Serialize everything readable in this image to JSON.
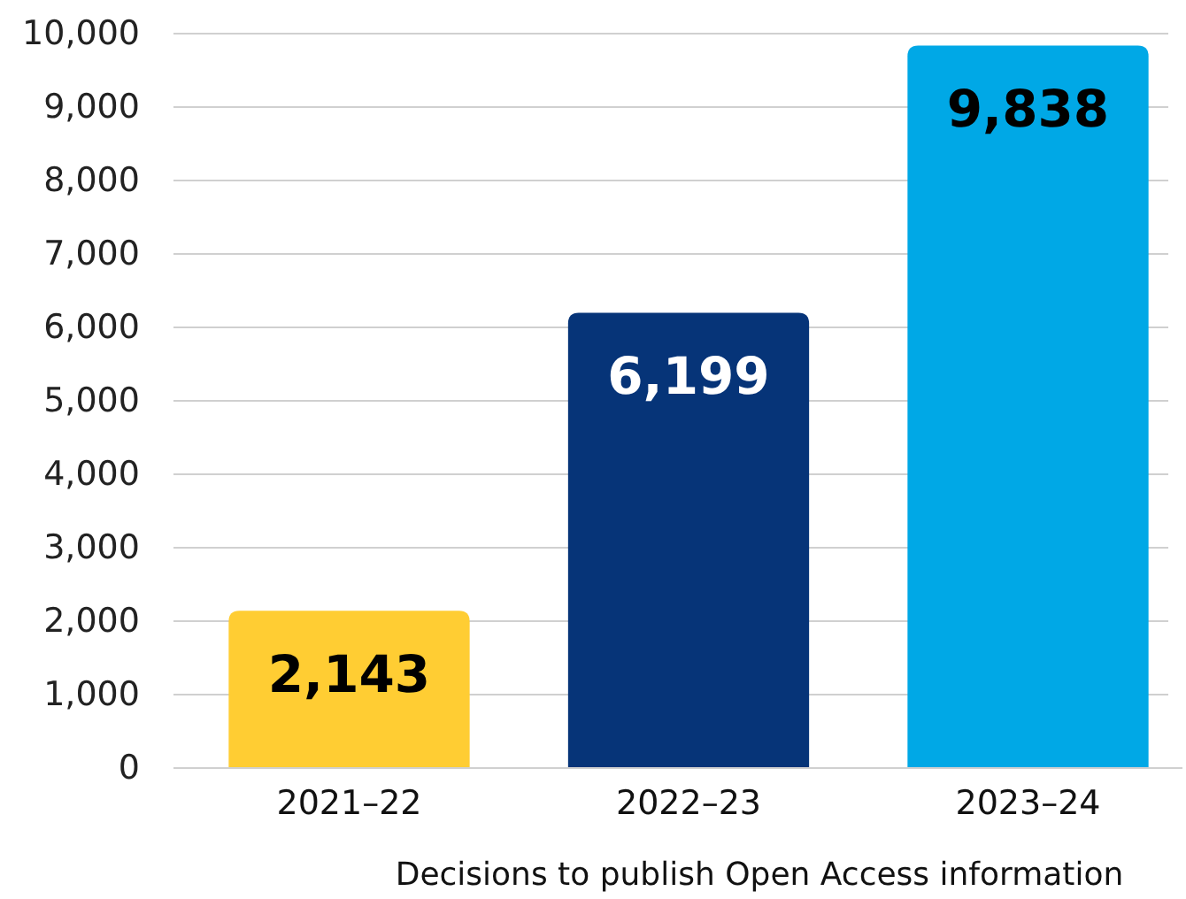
{
  "chart_data": {
    "type": "bar",
    "xlabel": "Decisions to publish Open Access information",
    "categories": [
      "2021–22",
      "2022–23",
      "2023–24"
    ],
    "values": [
      2143,
      6199,
      9838
    ],
    "colors": [
      "#ffcd33",
      "#063478",
      "#00a8e6"
    ],
    "value_labels": [
      "2,143",
      "6,199",
      "9,838"
    ],
    "ylim": [
      0,
      10000
    ],
    "yticks": [
      0,
      {
        "value": 1000,
        "label": "1,000"
      },
      {
        "value": 2000,
        "label": "2,000"
      },
      {
        "value": 3000,
        "label": "3,000"
      },
      {
        "value": 4000,
        "label": "4,000"
      },
      {
        "value": 5000,
        "label": "5,000"
      },
      {
        "value": 6000,
        "label": "6,000"
      },
      {
        "value": 7000,
        "label": "7,000"
      },
      {
        "value": 8000,
        "label": "8,000"
      },
      {
        "value": 9000,
        "label": "9,000"
      },
      {
        "value": 10000,
        "label": "10,000"
      }
    ],
    "grid": "y"
  }
}
